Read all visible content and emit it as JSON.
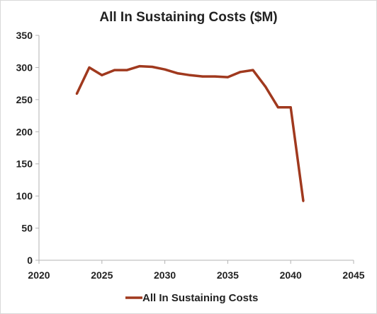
{
  "chart_data": {
    "type": "line",
    "title": "All In Sustaining Costs ($M)",
    "xlabel": "",
    "ylabel": "",
    "xlim": [
      2020,
      2045
    ],
    "ylim": [
      0,
      350
    ],
    "x_ticks": [
      2020,
      2025,
      2030,
      2035,
      2040,
      2045
    ],
    "y_ticks": [
      0,
      50,
      100,
      150,
      200,
      250,
      300,
      350
    ],
    "grid": false,
    "legend_position": "bottom",
    "series": [
      {
        "name": "All In Sustaining Costs",
        "color": "#A0391E",
        "x": [
          2023,
          2024,
          2025,
          2026,
          2027,
          2028,
          2029,
          2030,
          2031,
          2032,
          2033,
          2034,
          2035,
          2036,
          2037,
          2038,
          2039,
          2040,
          2041
        ],
        "y": [
          259,
          300,
          288,
          296,
          296,
          302,
          301,
          297,
          291,
          288,
          286,
          286,
          285,
          293,
          296,
          270,
          238,
          238,
          92
        ]
      }
    ]
  }
}
